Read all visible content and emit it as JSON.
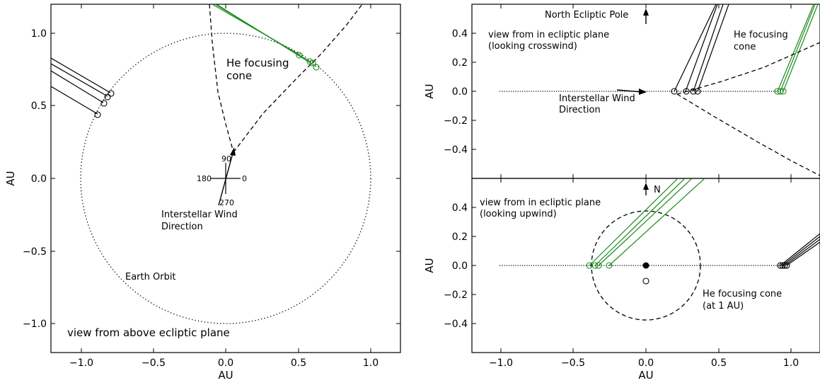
{
  "left_panel": {
    "xlabel": "AU",
    "ylabel": "AU",
    "xlim": [
      -1.2,
      1.2
    ],
    "ylim": [
      -1.2,
      1.2
    ],
    "xticks": [
      "−1.0",
      "−0.5",
      "0.0",
      "0.5",
      "1.0"
    ],
    "yticks": [
      "1.0",
      "0.5",
      "0.0",
      "−0.5",
      "−1.0"
    ],
    "he_cone_label": "He focusing\ncone",
    "wind_label_line1": "Interstellar Wind",
    "wind_label_line2": "Direction",
    "earth_orbit_label": "Earth Orbit",
    "view_label": "view from above ecliptic plane",
    "compass": {
      "n": "90",
      "w": "180",
      "e": "0",
      "s": "270"
    }
  },
  "right_top_panel": {
    "ylabel": "AU",
    "ylim": [
      -0.6,
      0.6
    ],
    "yticks": [
      "0.4",
      "0.2",
      "0.0",
      "−0.2",
      "−0.4"
    ],
    "pole_label": "North Ecliptic Pole",
    "view_line1": "view from in ecliptic plane",
    "view_line2": "(looking crosswind)",
    "cone_line1": "He focusing",
    "cone_line2": "cone",
    "wind_line1": "Interstellar Wind",
    "wind_line2": "Direction"
  },
  "right_bottom_panel": {
    "xlabel": "AU",
    "ylabel": "AU",
    "ylim": [
      -0.6,
      0.6
    ],
    "xticks": [
      "−1.0",
      "−0.5",
      "0.0",
      "0.5",
      "1.0"
    ],
    "yticks": [
      "0.4",
      "0.2",
      "0.0",
      "−0.2",
      "−0.4"
    ],
    "n_label": "N",
    "view_line1": "view from in ecliptic plane",
    "view_line2": "(looking upwind)",
    "cone_line1": "He focusing cone",
    "cone_line2": "(at 1 AU)"
  },
  "colors": {
    "green": "#1a8a1a",
    "black": "#000000"
  }
}
